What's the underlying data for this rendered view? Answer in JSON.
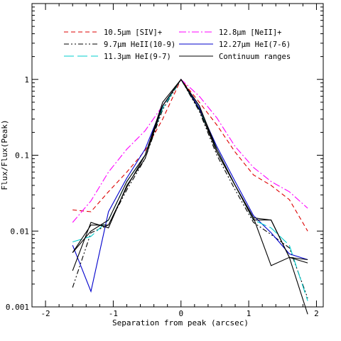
{
  "chart_data": {
    "type": "line",
    "xlabel": "Separation from peak (arcsec)",
    "ylabel": "Flux/Flux(Peak)",
    "xlim": [
      -2.2,
      2.1
    ],
    "ylim": [
      0.001,
      10
    ],
    "yscale": "log",
    "xticks": [
      -2,
      -1,
      0,
      1,
      2
    ],
    "yticks": [
      {
        "value": 0.001,
        "label": "0.001"
      },
      {
        "value": 0.01,
        "label": "0.01"
      },
      {
        "value": 0.1,
        "label": "0.1"
      },
      {
        "value": 1,
        "label": "1"
      }
    ],
    "legend_position": "top",
    "series": [
      {
        "name": "10.5μm [SIV]+",
        "color": "#dd0000",
        "dash": "dashed",
        "x": [
          -1.6,
          -1.33,
          -1.07,
          -0.8,
          -0.53,
          -0.27,
          0,
          0.27,
          0.53,
          0.8,
          1.07,
          1.33,
          1.6,
          1.87
        ],
        "y": [
          0.019,
          0.018,
          0.033,
          0.06,
          0.115,
          0.3,
          1.0,
          0.5,
          0.25,
          0.11,
          0.055,
          0.04,
          0.026,
          0.01
        ]
      },
      {
        "name": "12.8μm [NeII]+",
        "color": "#ff00ff",
        "dash": "dashdot",
        "x": [
          -1.6,
          -1.33,
          -1.07,
          -0.8,
          -0.53,
          -0.27,
          0,
          0.27,
          0.53,
          0.8,
          1.07,
          1.33,
          1.6,
          1.87
        ],
        "y": [
          0.013,
          0.025,
          0.06,
          0.12,
          0.21,
          0.45,
          1.0,
          0.6,
          0.31,
          0.13,
          0.069,
          0.045,
          0.033,
          0.02
        ]
      },
      {
        "name": "9.7μm HeII(10-9)",
        "color": "#000000",
        "dash": "dashdotdot",
        "x": [
          -1.6,
          -1.33,
          -1.07,
          -0.8,
          -0.53,
          -0.27,
          0,
          0.27,
          0.53,
          0.8,
          1.07,
          1.33,
          1.6,
          1.87
        ],
        "y": [
          0.0018,
          0.0095,
          0.012,
          0.035,
          0.09,
          0.4,
          1.0,
          0.38,
          0.1,
          0.035,
          0.013,
          0.009,
          0.006,
          0.0013
        ]
      },
      {
        "name": "12.27μm HeI(7-6)",
        "color": "#0000cc",
        "dash": "solid",
        "x": [
          -1.6,
          -1.33,
          -1.07,
          -0.8,
          -0.53,
          -0.27,
          0,
          0.27,
          0.53,
          0.8,
          1.07,
          1.33,
          1.6,
          1.87
        ],
        "y": [
          0.0065,
          0.0016,
          0.018,
          0.05,
          0.12,
          0.45,
          1.0,
          0.42,
          0.13,
          0.045,
          0.016,
          0.0095,
          0.005,
          0.0042
        ]
      },
      {
        "name": "11.3μm HeI(9-7)",
        "color": "#00cccc",
        "dash": "longdash",
        "x": [
          -1.6,
          -1.33,
          -1.07,
          -0.8,
          -0.53,
          -0.27,
          0,
          0.27,
          0.53,
          0.8,
          1.07,
          1.33,
          1.6,
          1.87
        ],
        "y": [
          0.0072,
          0.0085,
          0.014,
          0.045,
          0.1,
          0.42,
          1.0,
          0.4,
          0.12,
          0.04,
          0.014,
          0.011,
          0.0065,
          0.0012
        ]
      },
      {
        "name": "Continuum ranges",
        "color": "#000000",
        "dash": "solid",
        "lines": [
          {
            "x": [
              -1.6,
              -1.33,
              -1.07,
              -0.8,
              -0.53,
              -0.27,
              0,
              0.27,
              0.53,
              0.8,
              1.07,
              1.33,
              1.6,
              1.87
            ],
            "y": [
              0.003,
              0.013,
              0.011,
              0.04,
              0.09,
              0.45,
              1.0,
              0.4,
              0.11,
              0.04,
              0.015,
              0.0035,
              0.0045,
              0.0038
            ]
          },
          {
            "x": [
              -1.6,
              -1.33,
              -1.07,
              -0.8,
              -0.53,
              -0.27,
              0,
              0.27,
              0.53,
              0.8,
              1.07,
              1.33,
              1.6,
              1.87
            ],
            "y": [
              0.0052,
              0.012,
              0.012,
              0.038,
              0.1,
              0.45,
              1.0,
              0.45,
              0.11,
              0.04,
              0.014,
              0.014,
              0.0045,
              0.0042
            ]
          },
          {
            "x": [
              -1.6,
              -1.33,
              -1.07,
              -0.8,
              -0.53,
              -0.27,
              0,
              0.27,
              0.53,
              0.8,
              1.07,
              1.33,
              1.6,
              1.87
            ],
            "y": [
              0.0052,
              0.01,
              0.014,
              0.045,
              0.1,
              0.5,
              1.0,
              0.45,
              0.12,
              0.04,
              0.015,
              0.014,
              0.0045,
              0.0008
            ]
          }
        ]
      }
    ]
  }
}
